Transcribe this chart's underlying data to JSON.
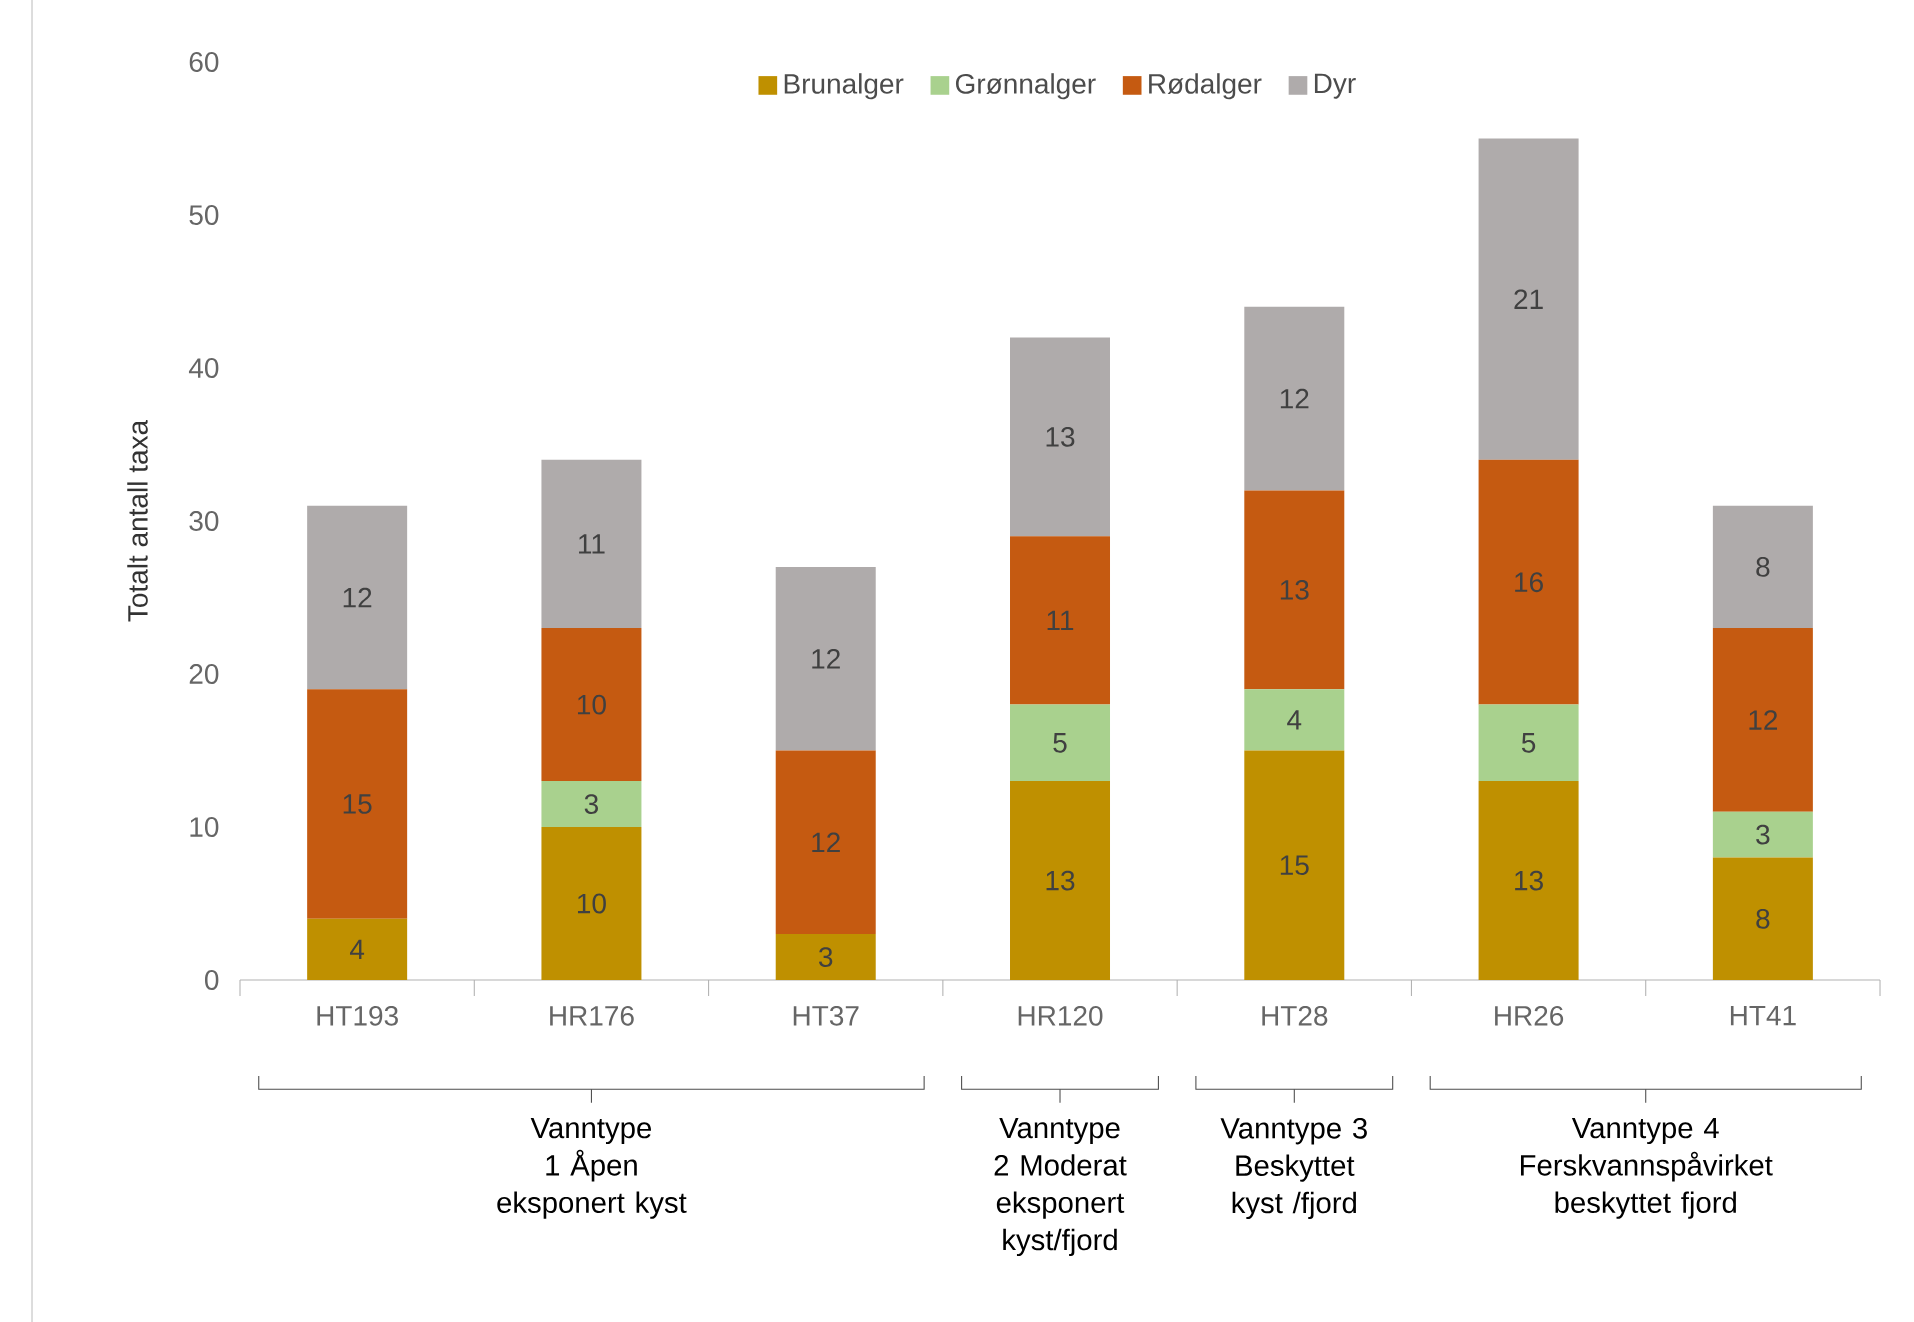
{
  "chart_data": {
    "type": "bar",
    "stacked": true,
    "ylabel": "Totalt antall taxa",
    "categories": [
      "HT193",
      "HR176",
      "HT37",
      "HR120",
      "HT28",
      "HR26",
      "HT41"
    ],
    "series": [
      {
        "name": "Brunalger",
        "color": "#bf9000",
        "values": [
          4,
          10,
          3,
          13,
          15,
          13,
          8
        ]
      },
      {
        "name": "Grønnalger",
        "color": "#a9d18e",
        "values": [
          null,
          3,
          null,
          5,
          4,
          5,
          3
        ]
      },
      {
        "name": "Rødalger",
        "color": "#c55a11",
        "values": [
          15,
          10,
          12,
          11,
          13,
          16,
          12
        ]
      },
      {
        "name": "Dyr",
        "color": "#afabab",
        "values": [
          12,
          11,
          12,
          13,
          12,
          21,
          8
        ]
      }
    ],
    "ylim": [
      0,
      60
    ],
    "yticks": [
      0,
      10,
      20,
      30,
      40,
      50,
      60
    ],
    "data_labels": true,
    "legend": "top",
    "grid": false,
    "annotations": [
      "Vanntype 1 Åpen eksponert kyst",
      "Vanntype 2 Moderat eksponert kyst/fjord",
      "Vanntype 3 Beskyttet kyst /fjord",
      "Vanntype 4 Ferskvannspåvirket beskyttet fjord"
    ]
  }
}
